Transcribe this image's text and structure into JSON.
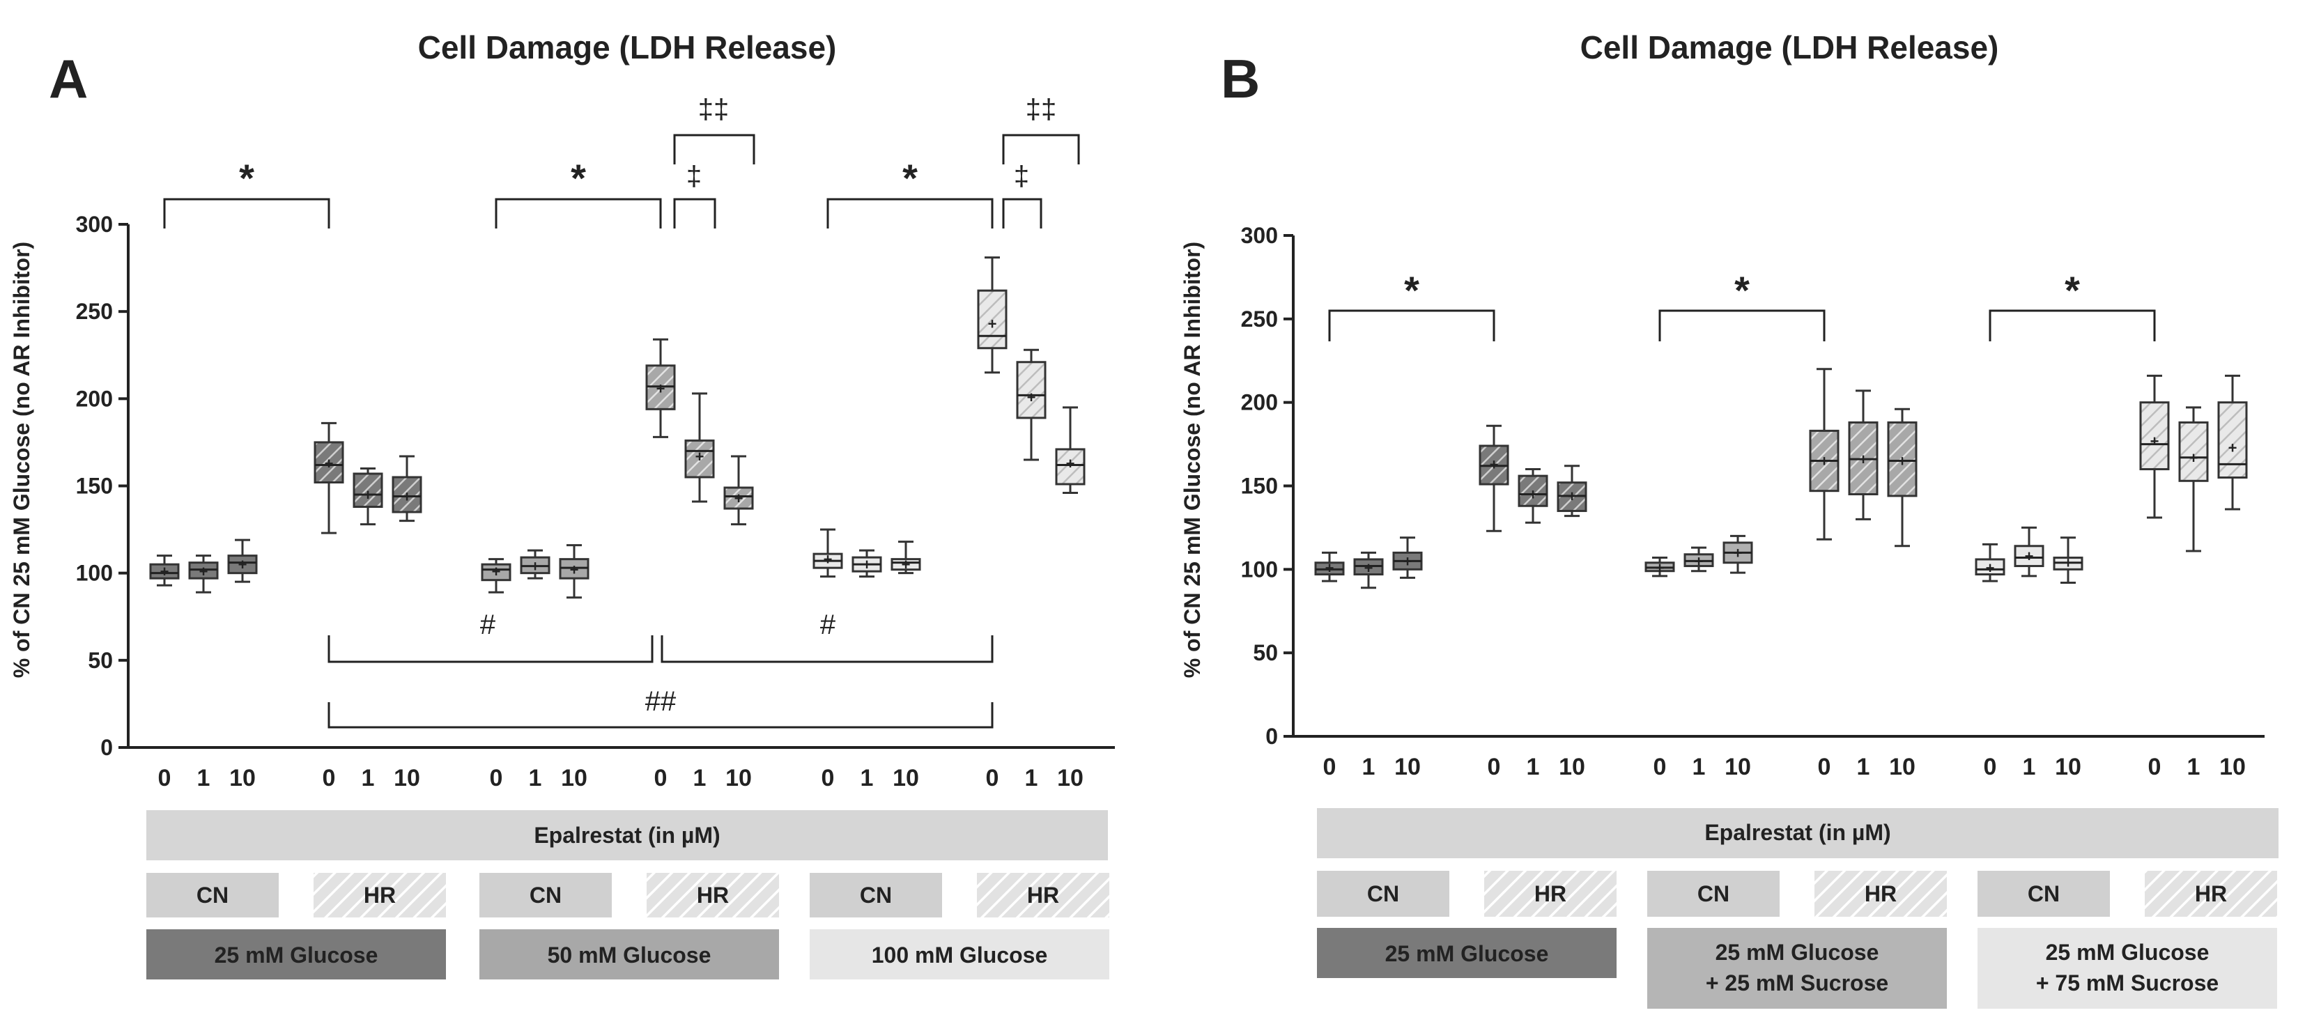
{
  "colors": {
    "glucose25": "#7a7a7a",
    "glucose50": "#a8a8a8",
    "glucose100": "#e6e6e6",
    "mix25": "#b5b5b5",
    "mix75": "#e6e6e6",
    "epalrestatBar": "#d6d6d6",
    "cnBox": "#d0d0d0",
    "hrHatch": "#c8c8c8"
  },
  "panels": [
    {
      "letter": "A",
      "title": "Cell Damage (LDH Release)",
      "ylabel": "% of CN 25 mM Glucose (no AR Inhibitor)",
      "yticks": [
        "0",
        "50",
        "100",
        "150",
        "200",
        "250",
        "300"
      ],
      "epalrestat_label": "Epalrestat (in µM)",
      "group_labels": [
        {
          "cn": "CN",
          "hr": "HR",
          "conc": [
            "25 mM Glucose"
          ]
        },
        {
          "cn": "CN",
          "hr": "HR",
          "conc": [
            "50 mM Glucose"
          ]
        },
        {
          "cn": "CN",
          "hr": "HR",
          "conc": [
            "100 mM Glucose"
          ]
        }
      ],
      "annotations": {
        "star": "*",
        "hash": "#",
        "hash2": "##",
        "dagger": "‡",
        "dagger2": "‡‡"
      }
    },
    {
      "letter": "B",
      "title": "Cell Damage (LDH Release)",
      "ylabel": "% of CN 25 mM Glucose (no AR Inhibitor)",
      "yticks": [
        "0",
        "50",
        "100",
        "150",
        "200",
        "250",
        "300"
      ],
      "epalrestat_label": "Epalrestat (in µM)",
      "group_labels": [
        {
          "cn": "CN",
          "hr": "HR",
          "conc": [
            "25 mM Glucose"
          ]
        },
        {
          "cn": "CN",
          "hr": "HR",
          "conc": [
            "25 mM Glucose",
            "+ 25 mM Sucrose"
          ]
        },
        {
          "cn": "CN",
          "hr": "HR",
          "conc": [
            "25 mM Glucose",
            "+ 75 mM Sucrose"
          ]
        }
      ],
      "annotations": {
        "star": "*"
      }
    }
  ],
  "chart_data": [
    {
      "type": "box",
      "title": "Cell Damage (LDH Release)",
      "ylabel": "% of CN 25 mM Glucose (no AR Inhibitor)",
      "xlabel": "Epalrestat (in µM)",
      "ylim": [
        0,
        300
      ],
      "categories": [
        "0",
        "1",
        "10",
        "0",
        "1",
        "10",
        "0",
        "1",
        "10",
        "0",
        "1",
        "10",
        "0",
        "1",
        "10",
        "0",
        "1",
        "10"
      ],
      "series": [
        {
          "group": "25 mM Glucose",
          "condition": "CN",
          "dose": "0",
          "min": 93,
          "q1": 97,
          "median": 100,
          "q3": 105,
          "max": 110,
          "mean": 101
        },
        {
          "group": "25 mM Glucose",
          "condition": "CN",
          "dose": "1",
          "min": 89,
          "q1": 97,
          "median": 102,
          "q3": 106,
          "max": 110,
          "mean": 101
        },
        {
          "group": "25 mM Glucose",
          "condition": "CN",
          "dose": "10",
          "min": 95,
          "q1": 100,
          "median": 106,
          "q3": 110,
          "max": 119,
          "mean": 105
        },
        {
          "group": "25 mM Glucose",
          "condition": "HR",
          "dose": "0",
          "min": 123,
          "q1": 152,
          "median": 162,
          "q3": 175,
          "max": 186,
          "mean": 163
        },
        {
          "group": "25 mM Glucose",
          "condition": "HR",
          "dose": "1",
          "min": 128,
          "q1": 138,
          "median": 145,
          "q3": 157,
          "max": 160,
          "mean": 145
        },
        {
          "group": "25 mM Glucose",
          "condition": "HR",
          "dose": "10",
          "min": 130,
          "q1": 135,
          "median": 144,
          "q3": 155,
          "max": 167,
          "mean": 144
        },
        {
          "group": "50 mM Glucose",
          "condition": "CN",
          "dose": "0",
          "min": 89,
          "q1": 96,
          "median": 102,
          "q3": 105,
          "max": 108,
          "mean": 101
        },
        {
          "group": "50 mM Glucose",
          "condition": "CN",
          "dose": "1",
          "min": 97,
          "q1": 100,
          "median": 104,
          "q3": 109,
          "max": 113,
          "mean": 104
        },
        {
          "group": "50 mM Glucose",
          "condition": "CN",
          "dose": "10",
          "min": 86,
          "q1": 97,
          "median": 103,
          "q3": 108,
          "max": 116,
          "mean": 102
        },
        {
          "group": "50 mM Glucose",
          "condition": "HR",
          "dose": "0",
          "min": 178,
          "q1": 194,
          "median": 207,
          "q3": 219,
          "max": 234,
          "mean": 206
        },
        {
          "group": "50 mM Glucose",
          "condition": "HR",
          "dose": "1",
          "min": 141,
          "q1": 155,
          "median": 170,
          "q3": 176,
          "max": 203,
          "mean": 167
        },
        {
          "group": "50 mM Glucose",
          "condition": "HR",
          "dose": "10",
          "min": 128,
          "q1": 137,
          "median": 144,
          "q3": 149,
          "max": 167,
          "mean": 143
        },
        {
          "group": "100 mM Glucose",
          "condition": "CN",
          "dose": "0",
          "min": 98,
          "q1": 103,
          "median": 107,
          "q3": 111,
          "max": 125,
          "mean": 108
        },
        {
          "group": "100 mM Glucose",
          "condition": "CN",
          "dose": "1",
          "min": 98,
          "q1": 101,
          "median": 105,
          "q3": 109,
          "max": 113,
          "mean": 105
        },
        {
          "group": "100 mM Glucose",
          "condition": "CN",
          "dose": "10",
          "min": 100,
          "q1": 102,
          "median": 106,
          "q3": 108,
          "max": 118,
          "mean": 105
        },
        {
          "group": "100 mM Glucose",
          "condition": "HR",
          "dose": "0",
          "min": 215,
          "q1": 229,
          "median": 236,
          "q3": 262,
          "max": 281,
          "mean": 243
        },
        {
          "group": "100 mM Glucose",
          "condition": "HR",
          "dose": "1",
          "min": 165,
          "q1": 189,
          "median": 202,
          "q3": 221,
          "max": 228,
          "mean": 201
        },
        {
          "group": "100 mM Glucose",
          "condition": "HR",
          "dose": "10",
          "min": 146,
          "q1": 151,
          "median": 162,
          "q3": 171,
          "max": 195,
          "mean": 163
        }
      ]
    },
    {
      "type": "box",
      "title": "Cell Damage (LDH Release)",
      "ylabel": "% of CN 25 mM Glucose (no AR Inhibitor)",
      "xlabel": "Epalrestat (in µM)",
      "ylim": [
        0,
        300
      ],
      "categories": [
        "0",
        "1",
        "10",
        "0",
        "1",
        "10",
        "0",
        "1",
        "10",
        "0",
        "1",
        "10",
        "0",
        "1",
        "10",
        "0",
        "1",
        "10"
      ],
      "series": [
        {
          "group": "25 mM Glucose",
          "condition": "CN",
          "dose": "0",
          "min": 93,
          "q1": 97,
          "median": 100,
          "q3": 104,
          "max": 110,
          "mean": 101
        },
        {
          "group": "25 mM Glucose",
          "condition": "CN",
          "dose": "1",
          "min": 89,
          "q1": 97,
          "median": 102,
          "q3": 106,
          "max": 110,
          "mean": 101
        },
        {
          "group": "25 mM Glucose",
          "condition": "CN",
          "dose": "10",
          "min": 95,
          "q1": 100,
          "median": 105,
          "q3": 110,
          "max": 119,
          "mean": 105
        },
        {
          "group": "25 mM Glucose",
          "condition": "HR",
          "dose": "0",
          "min": 123,
          "q1": 151,
          "median": 162,
          "q3": 174,
          "max": 186,
          "mean": 163
        },
        {
          "group": "25 mM Glucose",
          "condition": "HR",
          "dose": "1",
          "min": 128,
          "q1": 138,
          "median": 145,
          "q3": 156,
          "max": 160,
          "mean": 145
        },
        {
          "group": "25 mM Glucose",
          "condition": "HR",
          "dose": "10",
          "min": 132,
          "q1": 135,
          "median": 144,
          "q3": 152,
          "max": 162,
          "mean": 144
        },
        {
          "group": "25 mM Glucose + 25 mM Sucrose",
          "condition": "CN",
          "dose": "0",
          "min": 96,
          "q1": 99,
          "median": 101,
          "q3": 104,
          "max": 107,
          "mean": 101
        },
        {
          "group": "25 mM Glucose + 25 mM Sucrose",
          "condition": "CN",
          "dose": "1",
          "min": 99,
          "q1": 102,
          "median": 105,
          "q3": 109,
          "max": 113,
          "mean": 105
        },
        {
          "group": "25 mM Glucose + 25 mM Sucrose",
          "condition": "CN",
          "dose": "10",
          "min": 98,
          "q1": 104,
          "median": 110,
          "q3": 116,
          "max": 120,
          "mean": 110
        },
        {
          "group": "25 mM Glucose + 25 mM Sucrose",
          "condition": "HR",
          "dose": "0",
          "min": 118,
          "q1": 147,
          "median": 165,
          "q3": 183,
          "max": 220,
          "mean": 165
        },
        {
          "group": "25 mM Glucose + 25 mM Sucrose",
          "condition": "HR",
          "dose": "1",
          "min": 130,
          "q1": 145,
          "median": 166,
          "q3": 188,
          "max": 207,
          "mean": 166
        },
        {
          "group": "25 mM Glucose + 25 mM Sucrose",
          "condition": "HR",
          "dose": "10",
          "min": 114,
          "q1": 144,
          "median": 165,
          "q3": 188,
          "max": 196,
          "mean": 165
        },
        {
          "group": "25 mM Glucose + 75 mM Sucrose",
          "condition": "CN",
          "dose": "0",
          "min": 93,
          "q1": 97,
          "median": 100,
          "q3": 106,
          "max": 115,
          "mean": 101
        },
        {
          "group": "25 mM Glucose + 75 mM Sucrose",
          "condition": "CN",
          "dose": "1",
          "min": 96,
          "q1": 102,
          "median": 107,
          "q3": 114,
          "max": 125,
          "mean": 108
        },
        {
          "group": "25 mM Glucose + 75 mM Sucrose",
          "condition": "CN",
          "dose": "10",
          "min": 92,
          "q1": 100,
          "median": 104,
          "q3": 107,
          "max": 119,
          "mean": 104
        },
        {
          "group": "25 mM Glucose + 75 mM Sucrose",
          "condition": "HR",
          "dose": "0",
          "min": 131,
          "q1": 160,
          "median": 175,
          "q3": 200,
          "max": 216,
          "mean": 177
        },
        {
          "group": "25 mM Glucose + 75 mM Sucrose",
          "condition": "HR",
          "dose": "1",
          "min": 111,
          "q1": 153,
          "median": 167,
          "q3": 188,
          "max": 197,
          "mean": 167
        },
        {
          "group": "25 mM Glucose + 75 mM Sucrose",
          "condition": "HR",
          "dose": "10",
          "min": 136,
          "q1": 155,
          "median": 163,
          "q3": 200,
          "max": 216,
          "mean": 173
        }
      ]
    }
  ]
}
